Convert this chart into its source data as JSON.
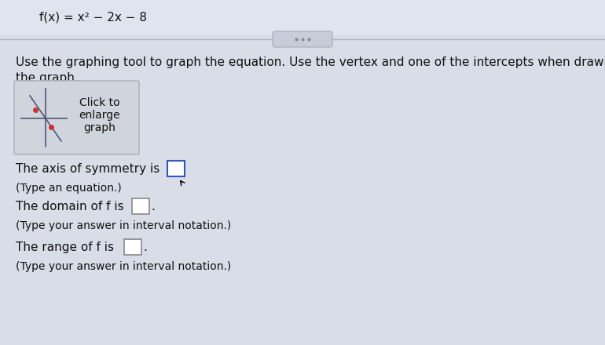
{
  "title": "f(x) = x² − 2x − 8",
  "instruction": "Use the graphing tool to graph the equation. Use the vertex and one of the intercepts when drawing\nthe graph.",
  "graph_button_text": "Click to\nenlarge\ngraph",
  "axis_of_symmetry_label": "The axis of symmetry is",
  "axis_of_symmetry_sub": "(Type an equation.)",
  "domain_label": "The domain of f is",
  "domain_sub": "(Type your answer in interval notation.)",
  "range_label": "The range of f is",
  "range_sub": "(Type your answer in interval notation.)",
  "bg_color": "#d8dde8",
  "title_bar_color": "#e0e4ee",
  "graph_box_color": "#d0d4dc",
  "graph_box_edge": "#b0b4bc",
  "divider_color": "#b0b4bc",
  "oval_fill": "#c8ccd8",
  "text_color": "#111111",
  "title_fontsize": 11,
  "body_fontsize": 11,
  "sub_fontsize": 10,
  "graph_text_fontsize": 10
}
